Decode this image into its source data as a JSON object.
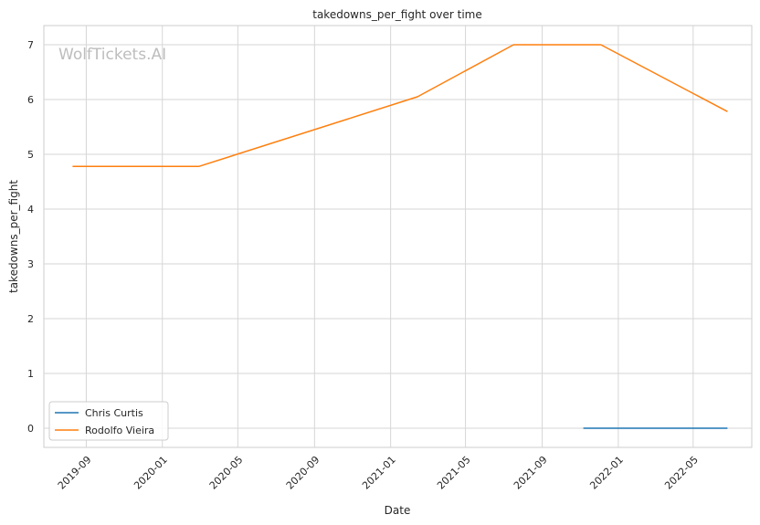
{
  "chart_data": {
    "type": "line",
    "title": "takedowns_per_fight over time",
    "xlabel": "Date",
    "ylabel": "takedowns_per_fight",
    "watermark": "WolfTickets.AI",
    "x_ticks": [
      "2019-09",
      "2020-01",
      "2020-05",
      "2020-09",
      "2021-01",
      "2021-05",
      "2021-09",
      "2022-01",
      "2022-05"
    ],
    "y_ticks": [
      "0",
      "1",
      "2",
      "3",
      "4",
      "5",
      "6",
      "7"
    ],
    "xlim": [
      "2019-06-25",
      "2022-08-03"
    ],
    "ylim": [
      -0.35,
      7.35
    ],
    "grid": true,
    "legend_position": "lower-left",
    "series": [
      {
        "name": "Chris Curtis",
        "color": "#1f77b4",
        "points": [
          {
            "x": "2021-11-06",
            "y": 0
          },
          {
            "x": "2022-06-25",
            "y": 0
          }
        ]
      },
      {
        "name": "Rodolfo Vieira",
        "color": "#ff7f0e",
        "points": [
          {
            "x": "2019-08-10",
            "y": 4.78
          },
          {
            "x": "2020-02-29",
            "y": 4.78
          },
          {
            "x": "2021-02-13",
            "y": 6.05
          },
          {
            "x": "2021-07-17",
            "y": 7.0
          },
          {
            "x": "2021-12-04",
            "y": 7.0
          },
          {
            "x": "2022-06-25",
            "y": 5.78
          }
        ]
      }
    ]
  }
}
